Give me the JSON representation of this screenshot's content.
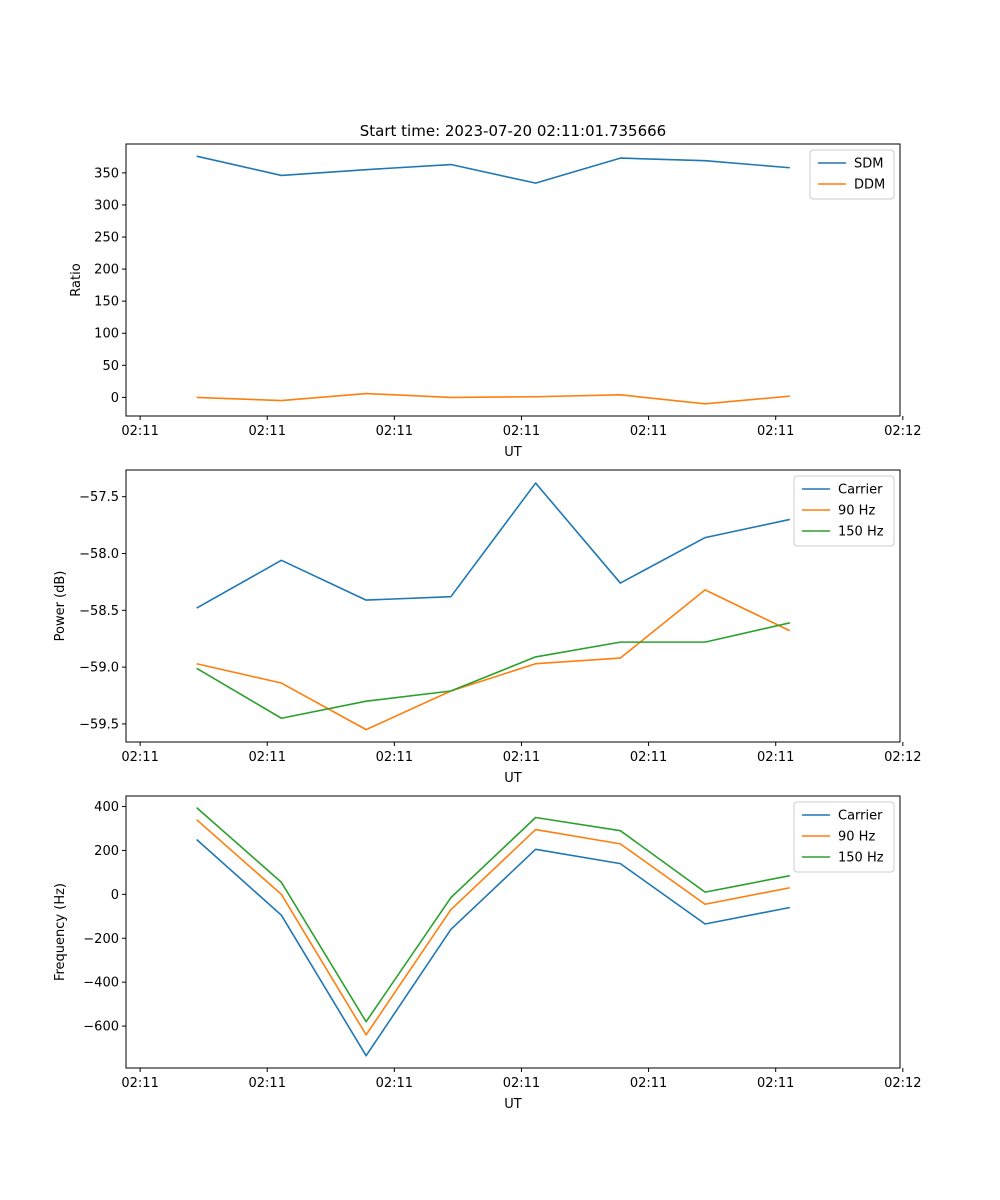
{
  "figure_title": "Start time: 2023-07-20 02:11:01.735666",
  "chart_data": [
    {
      "type": "line",
      "title": "Start time: 2023-07-20 02:11:01.735666",
      "xlabel": "UT",
      "ylabel": "Ratio",
      "x": [
        1,
        2,
        3,
        4,
        5,
        6,
        7,
        8
      ],
      "xlim": [
        0.1667,
        9.3
      ],
      "xticks": [
        0.3333,
        1.8333,
        3.3333,
        4.8333,
        6.3333,
        7.8333,
        9.3333
      ],
      "xtick_labels": [
        "02:11",
        "02:11",
        "02:11",
        "02:11",
        "02:11",
        "02:11",
        "02:12"
      ],
      "ylim": [
        -29,
        395
      ],
      "yticks": [
        0,
        50,
        100,
        150,
        200,
        250,
        300,
        350
      ],
      "ytick_labels": [
        "0",
        "50",
        "100",
        "150",
        "200",
        "250",
        "300",
        "350"
      ],
      "legend_position": "top-right",
      "series": [
        {
          "name": "SDM",
          "color": "#1f77b4",
          "values": [
            376,
            346,
            355,
            363,
            334,
            373,
            369,
            358
          ]
        },
        {
          "name": "DDM",
          "color": "#ff7f0e",
          "values": [
            0,
            -5,
            6,
            0,
            1,
            4,
            -10,
            2
          ]
        }
      ]
    },
    {
      "type": "line",
      "title": "",
      "xlabel": "UT",
      "ylabel": "Power (dB)",
      "x": [
        1,
        2,
        3,
        4,
        5,
        6,
        7,
        8
      ],
      "xlim": [
        0.1667,
        9.3
      ],
      "xticks": [
        0.3333,
        1.8333,
        3.3333,
        4.8333,
        6.3333,
        7.8333,
        9.3333
      ],
      "xtick_labels": [
        "02:11",
        "02:11",
        "02:11",
        "02:11",
        "02:11",
        "02:11",
        "02:12"
      ],
      "ylim": [
        -59.659,
        -57.265
      ],
      "yticks": [
        -59.5,
        -59.0,
        -58.5,
        -58.0,
        -57.5
      ],
      "ytick_labels": [
        "−59.5",
        "−59.0",
        "−58.5",
        "−58.0",
        "−57.5"
      ],
      "legend_position": "top-right",
      "series": [
        {
          "name": "Carrier",
          "color": "#1f77b4",
          "values": [
            -58.48,
            -58.06,
            -58.41,
            -58.38,
            -57.38,
            -58.26,
            -57.86,
            -57.7
          ]
        },
        {
          "name": "90 Hz",
          "color": "#ff7f0e",
          "values": [
            -58.97,
            -59.14,
            -59.55,
            -59.21,
            -58.97,
            -58.92,
            -58.32,
            -58.68
          ]
        },
        {
          "name": "150 Hz",
          "color": "#2ca02c",
          "values": [
            -59.01,
            -59.45,
            -59.3,
            -59.21,
            -58.91,
            -58.78,
            -58.78,
            -58.61
          ]
        }
      ]
    },
    {
      "type": "line",
      "title": "",
      "xlabel": "UT",
      "ylabel": "Frequency (Hz)",
      "x": [
        1,
        2,
        3,
        4,
        5,
        6,
        7,
        8
      ],
      "xlim": [
        0.1667,
        9.3
      ],
      "xticks": [
        0.3333,
        1.8333,
        3.3333,
        4.8333,
        6.3333,
        7.8333,
        9.3333
      ],
      "xtick_labels": [
        "02:11",
        "02:11",
        "02:11",
        "02:11",
        "02:11",
        "02:11",
        "02:12"
      ],
      "ylim": [
        -791,
        448
      ],
      "yticks": [
        -600,
        -400,
        -200,
        0,
        200,
        400
      ],
      "ytick_labels": [
        "−600",
        "−400",
        "−200",
        "0",
        "200",
        "400"
      ],
      "legend_position": "top-right",
      "series": [
        {
          "name": "Carrier",
          "color": "#1f77b4",
          "values": [
            250,
            -95,
            -735,
            -160,
            205,
            140,
            -135,
            -60
          ]
        },
        {
          "name": "90 Hz",
          "color": "#ff7f0e",
          "values": [
            340,
            0,
            -640,
            -70,
            295,
            230,
            -45,
            30
          ]
        },
        {
          "name": "150 Hz",
          "color": "#2ca02c",
          "values": [
            395,
            55,
            -580,
            -15,
            350,
            290,
            10,
            85
          ]
        }
      ]
    }
  ]
}
